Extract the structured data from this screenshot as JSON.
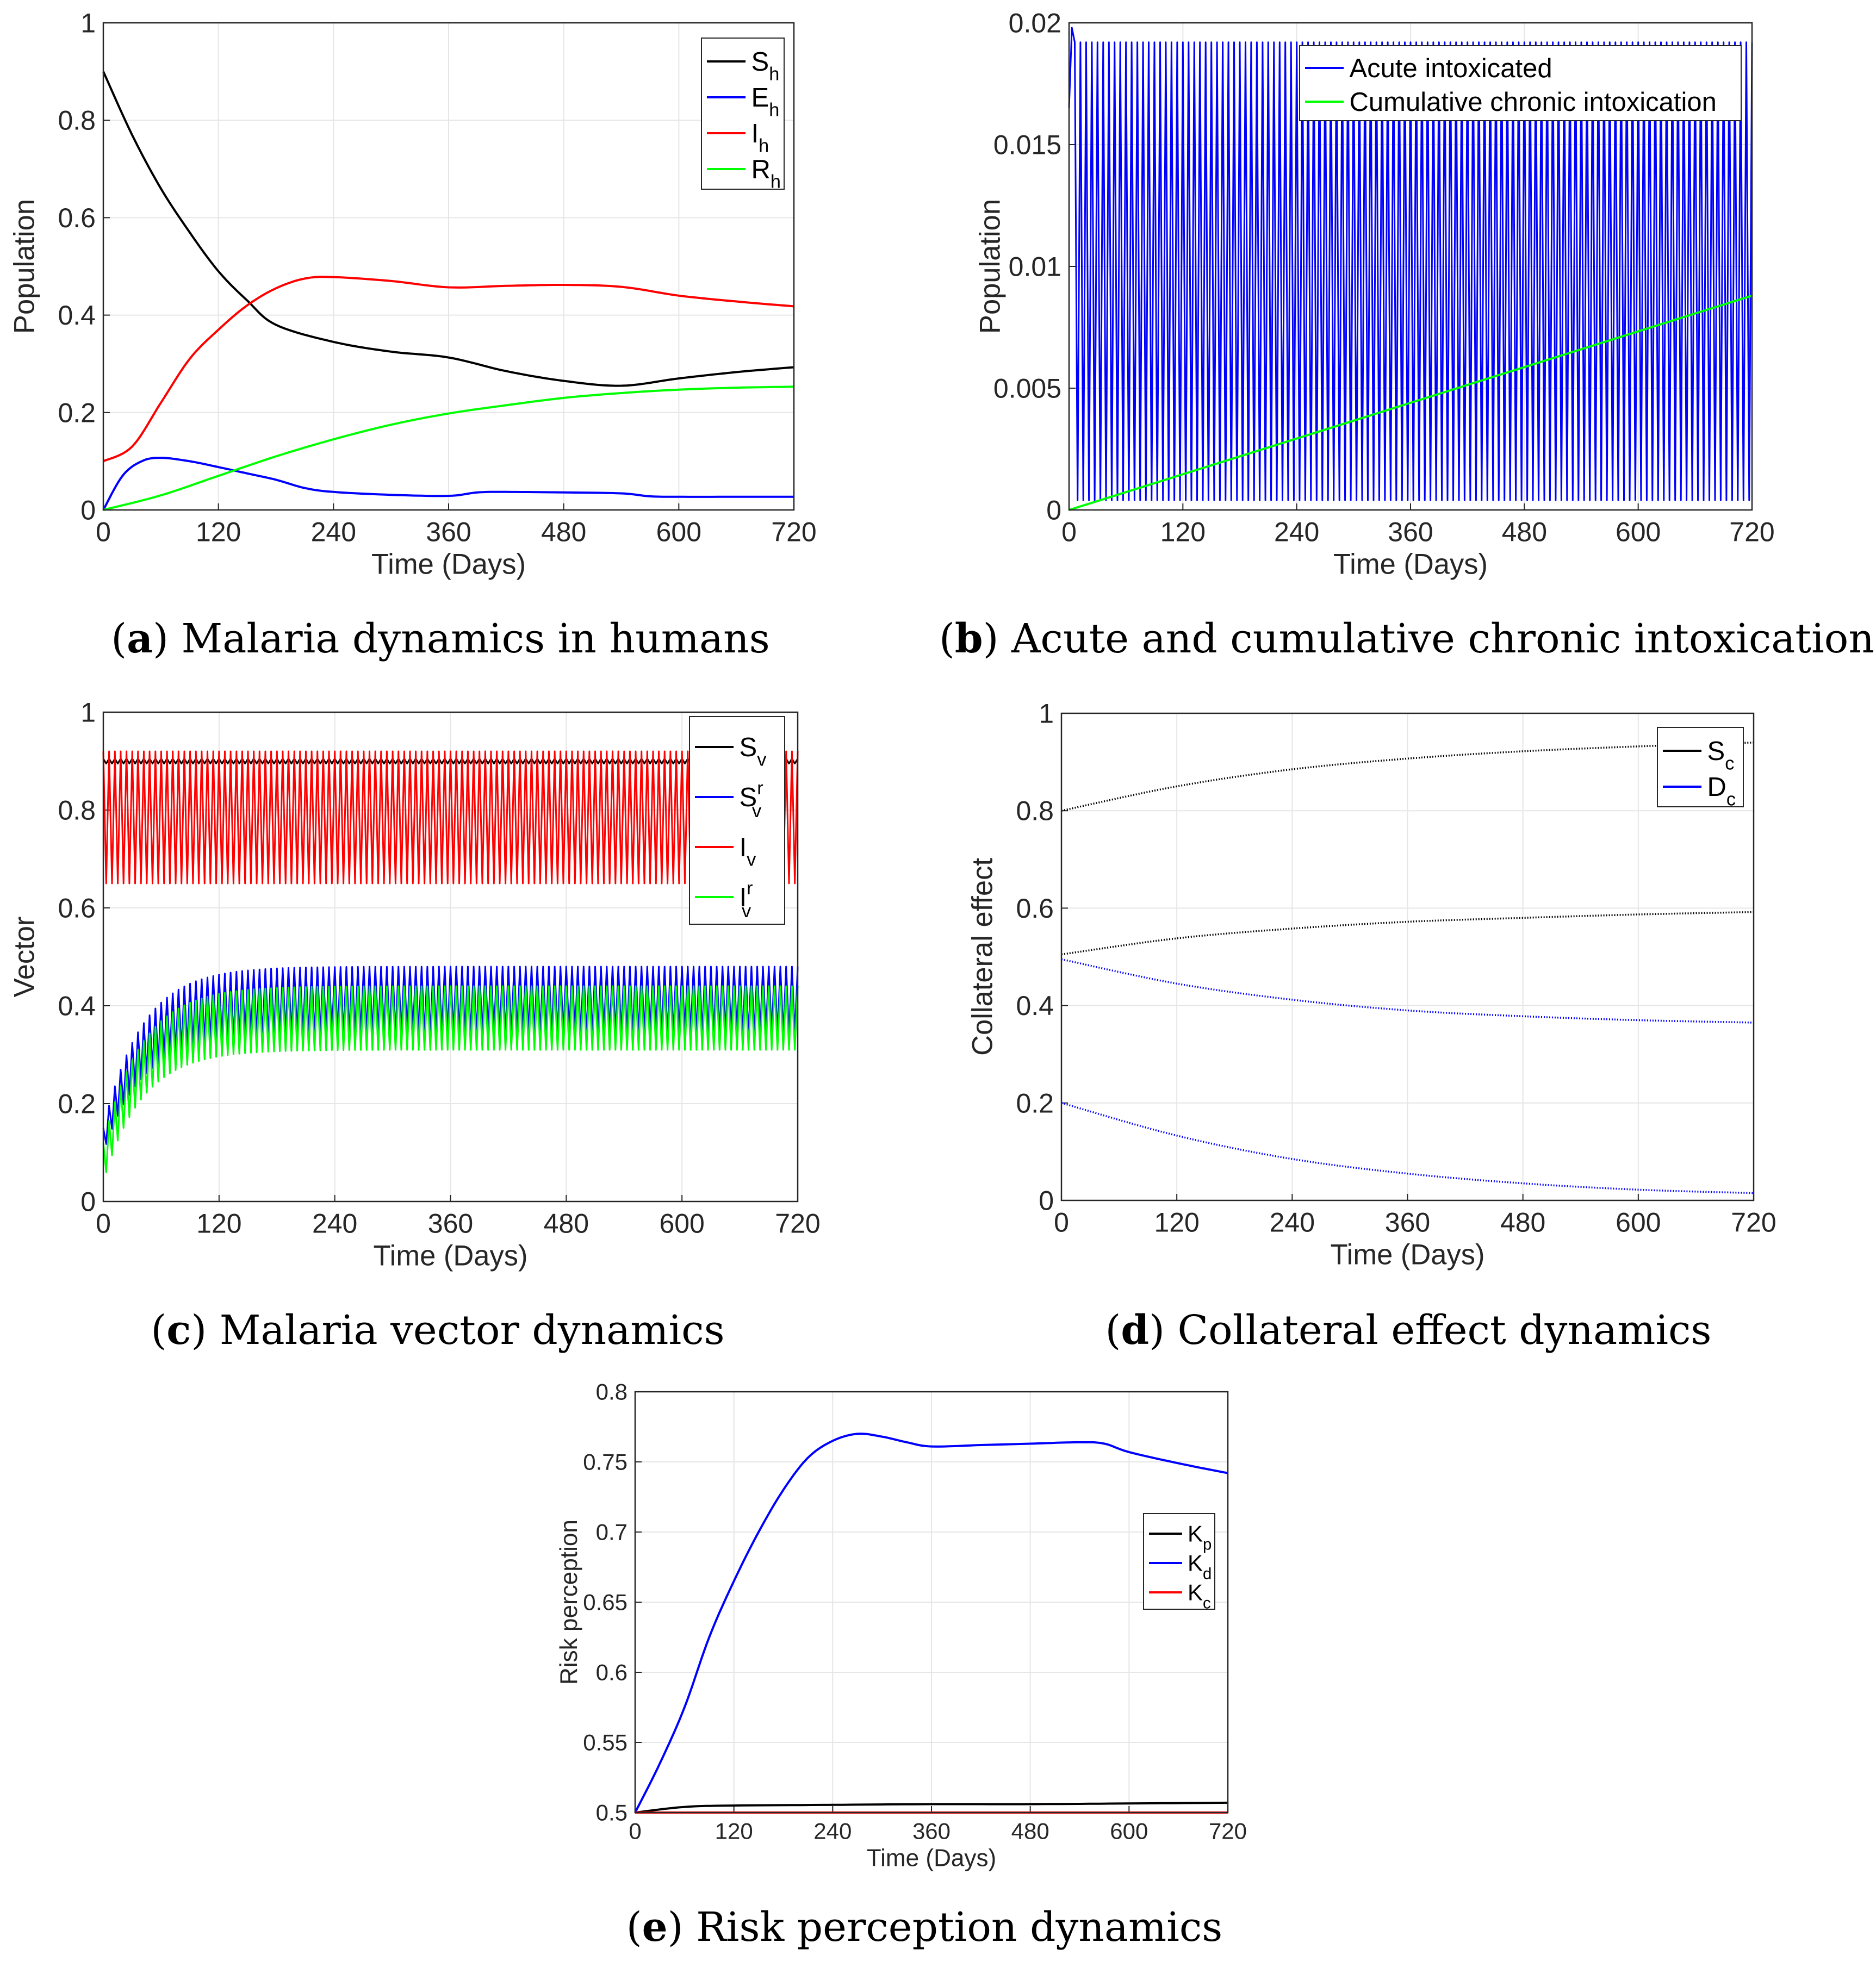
{
  "colors": {
    "black": "#000000",
    "blue": "#0000ff",
    "red": "#ff0000",
    "green": "#00ff00",
    "grid": "#e6e6e6",
    "axis": "#262626"
  },
  "captions": [
    {
      "letter": "a",
      "text": " Malaria dynamics in humans"
    },
    {
      "letter": "b",
      "text": " Acute and cumulative chronic intoxication"
    },
    {
      "letter": "c",
      "text": " Malaria vector dynamics"
    },
    {
      "letter": "d",
      "text": " Collateral effect dynamics"
    },
    {
      "letter": "e",
      "text": " Risk perception dynamics"
    }
  ],
  "chart_data": [
    {
      "id": "a",
      "type": "line",
      "xlabel": "Time (Days)",
      "ylabel": "Population",
      "xlim": [
        0,
        720
      ],
      "ylim": [
        0,
        1
      ],
      "xticks": [
        "0",
        "120",
        "240",
        "360",
        "480",
        "600",
        "720"
      ],
      "yticks": [
        "0",
        "0.2",
        "0.4",
        "0.6",
        "0.8",
        "1"
      ],
      "legend_position": "top-right",
      "series": [
        {
          "name": "S",
          "sub": "h",
          "color": "#000000",
          "x": [
            0,
            30,
            60,
            90,
            120,
            150,
            180,
            240,
            300,
            360,
            420,
            480,
            540,
            600,
            660,
            720
          ],
          "y": [
            0.9,
            0.77,
            0.66,
            0.57,
            0.49,
            0.43,
            0.38,
            0.345,
            0.325,
            0.313,
            0.285,
            0.265,
            0.255,
            0.27,
            0.283,
            0.293
          ]
        },
        {
          "name": "E",
          "sub": "h",
          "color": "#0000ff",
          "x": [
            0,
            20,
            40,
            60,
            90,
            120,
            150,
            180,
            210,
            240,
            300,
            360,
            390,
            420,
            480,
            540,
            570,
            600,
            660,
            720
          ],
          "y": [
            0.0,
            0.07,
            0.1,
            0.107,
            0.1,
            0.088,
            0.075,
            0.062,
            0.045,
            0.037,
            0.031,
            0.029,
            0.036,
            0.037,
            0.036,
            0.034,
            0.028,
            0.027,
            0.027,
            0.027
          ]
        },
        {
          "name": "I",
          "sub": "h",
          "color": "#ff0000",
          "x": [
            0,
            30,
            60,
            90,
            120,
            150,
            180,
            210,
            240,
            300,
            360,
            420,
            480,
            540,
            600,
            660,
            720
          ],
          "y": [
            0.1,
            0.13,
            0.22,
            0.31,
            0.37,
            0.42,
            0.455,
            0.475,
            0.478,
            0.47,
            0.457,
            0.46,
            0.462,
            0.458,
            0.44,
            0.428,
            0.418
          ]
        },
        {
          "name": "R",
          "sub": "h",
          "color": "#00ff00",
          "x": [
            0,
            60,
            120,
            180,
            240,
            300,
            360,
            420,
            480,
            540,
            600,
            660,
            720
          ],
          "y": [
            0.0,
            0.03,
            0.07,
            0.11,
            0.145,
            0.175,
            0.198,
            0.215,
            0.23,
            0.24,
            0.247,
            0.251,
            0.253
          ]
        }
      ]
    },
    {
      "id": "b",
      "type": "line",
      "xlabel": "Time (Days)",
      "ylabel": "Population",
      "xlim": [
        0,
        720
      ],
      "ylim": [
        0,
        0.02
      ],
      "xticks": [
        "0",
        "120",
        "240",
        "360",
        "480",
        "600",
        "720"
      ],
      "yticks": [
        "0",
        "0.005",
        "0.01",
        "0.015",
        "0.02"
      ],
      "legend_position": "top-right",
      "series": [
        {
          "name": "Acute intoxicated",
          "color": "#0000ff",
          "oscillation": {
            "period_days": 6,
            "min": 0.0004,
            "max": 0.0192,
            "first_peak": 0.0198
          }
        },
        {
          "name": "Cumulative chronic intoxication",
          "color": "#00ff00",
          "x": [
            0,
            720
          ],
          "y": [
            0.0,
            0.0088
          ]
        }
      ]
    },
    {
      "id": "c",
      "type": "line",
      "xlabel": "Time (Days)",
      "ylabel": "Vector",
      "xlim": [
        0,
        720
      ],
      "ylim": [
        0,
        1
      ],
      "xticks": [
        "0",
        "120",
        "240",
        "360",
        "480",
        "600",
        "720"
      ],
      "yticks": [
        "0",
        "0.2",
        "0.4",
        "0.6",
        "0.8",
        "1"
      ],
      "legend_position": "top-right",
      "series": [
        {
          "name": "S",
          "sub": "v",
          "color": "#000000",
          "oscillation": {
            "period_days": 6,
            "min": 0.895,
            "max": 0.905
          }
        },
        {
          "name": "S",
          "sub": "v",
          "sup": "r",
          "color": "#0000ff",
          "oscillation": {
            "period_days": 6,
            "min_start": 0.1,
            "min_end": 0.34,
            "max_start": 0.15,
            "max_end": 0.48
          }
        },
        {
          "name": "I",
          "sub": "v",
          "color": "#ff0000",
          "oscillation": {
            "period_days": 6,
            "min": 0.65,
            "max": 0.92
          }
        },
        {
          "name": "I",
          "sub": "v",
          "sup": "r",
          "color": "#00ff00",
          "oscillation": {
            "period_days": 6,
            "min_start": 0.04,
            "min_end": 0.31,
            "max_start": 0.12,
            "max_end": 0.44
          }
        }
      ]
    },
    {
      "id": "d",
      "type": "line",
      "xlabel": "Time (Days)",
      "ylabel": "Collateral effect",
      "xlim": [
        0,
        720
      ],
      "ylim": [
        0,
        1
      ],
      "xticks": [
        "0",
        "120",
        "240",
        "360",
        "480",
        "600",
        "720"
      ],
      "yticks": [
        "0",
        "0.2",
        "0.4",
        "0.6",
        "0.8",
        "1"
      ],
      "legend_position": "top-right",
      "series": [
        {
          "name": "S",
          "sub": "c",
          "color": "#000000",
          "x": [
            0,
            120,
            240,
            360,
            480,
            600,
            720
          ],
          "y": [
            0.8,
            0.85,
            0.885,
            0.907,
            0.922,
            0.932,
            0.94
          ]
        },
        {
          "name": "S",
          "sub": "c",
          "color": "#000000",
          "x": [
            0,
            120,
            240,
            360,
            480,
            600,
            720
          ],
          "y": [
            0.505,
            0.538,
            0.558,
            0.572,
            0.58,
            0.587,
            0.592
          ]
        },
        {
          "name": "D",
          "sub": "c",
          "color": "#0000ff",
          "x": [
            0,
            120,
            240,
            360,
            480,
            600,
            720
          ],
          "y": [
            0.495,
            0.445,
            0.412,
            0.39,
            0.378,
            0.37,
            0.365
          ]
        },
        {
          "name": "D",
          "sub": "c",
          "color": "#0000ff",
          "x": [
            0,
            120,
            240,
            360,
            480,
            600,
            720
          ],
          "y": [
            0.2,
            0.133,
            0.085,
            0.055,
            0.035,
            0.022,
            0.015
          ]
        }
      ]
    },
    {
      "id": "e",
      "type": "line",
      "xlabel": "Time (Days)",
      "ylabel": "Risk perception",
      "xlim": [
        0,
        720
      ],
      "ylim": [
        0.5,
        0.8
      ],
      "xticks": [
        "0",
        "120",
        "240",
        "360",
        "480",
        "600",
        "720"
      ],
      "yticks": [
        "0.5",
        "0.55",
        "0.6",
        "0.65",
        "0.7",
        "0.75",
        "0.8"
      ],
      "legend_position": "right",
      "series": [
        {
          "name": "K",
          "sub": "p",
          "color": "#000000",
          "x": [
            0,
            60,
            120,
            240,
            360,
            480,
            600,
            720
          ],
          "y": [
            0.5,
            0.504,
            0.505,
            0.5055,
            0.506,
            0.506,
            0.5065,
            0.507
          ]
        },
        {
          "name": "K",
          "sub": "d",
          "color": "#0000ff",
          "x": [
            0,
            30,
            60,
            90,
            120,
            150,
            180,
            210,
            240,
            270,
            300,
            330,
            360,
            420,
            480,
            540,
            570,
            600,
            660,
            720
          ],
          "y": [
            0.5,
            0.535,
            0.575,
            0.625,
            0.665,
            0.7,
            0.73,
            0.753,
            0.765,
            0.77,
            0.768,
            0.764,
            0.761,
            0.762,
            0.763,
            0.764,
            0.763,
            0.757,
            0.749,
            0.742
          ]
        },
        {
          "name": "K",
          "sub": "c",
          "color": "#ff0000",
          "x": [
            0,
            720
          ],
          "y": [
            0.5,
            0.5
          ]
        }
      ]
    }
  ]
}
